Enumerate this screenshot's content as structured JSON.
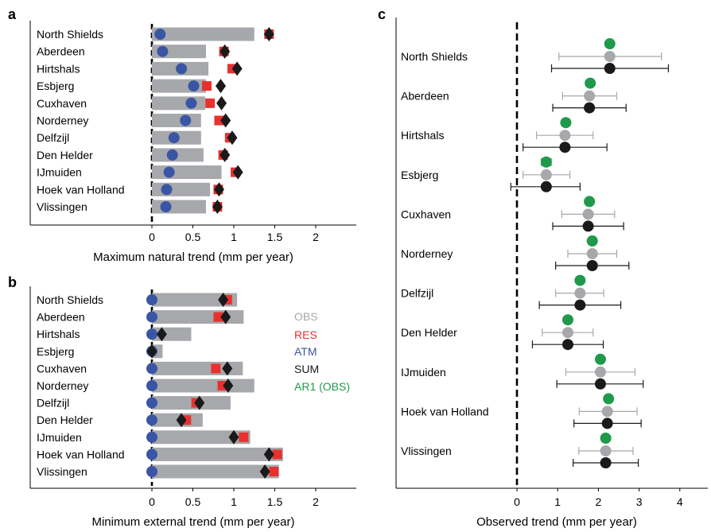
{
  "colors": {
    "obs": "#a6a8ab",
    "res": "#e8312f",
    "atm": "#3a55a4",
    "sum": "#1a1a1a",
    "ar1": "#1f9a4a"
  },
  "legend": {
    "obs": "OBS",
    "res": "RES",
    "atm": "ATM",
    "sum": "SUM",
    "ar1": "AR1 (OBS)"
  },
  "chart_data": [
    {
      "panel_label": "a",
      "type": "bar",
      "orientation": "horizontal",
      "xlabel": "Maximum natural trend (mm per year)",
      "xlim": [
        -1.5,
        2.45
      ],
      "xticks": [
        0,
        0.5,
        1,
        1.5,
        2
      ],
      "xtick_labels": [
        "0",
        "0.5",
        "1",
        "1.5",
        "2"
      ],
      "categories": [
        "North Shields",
        "Aberdeen",
        "Hirtshals",
        "Esbjerg",
        "Cuxhaven",
        "Norderney",
        "Delfzijl",
        "Den Helder",
        "IJmuiden",
        "Hoek van Holland",
        "Vlissingen"
      ],
      "series": [
        {
          "name": "OBS",
          "kind": "bar",
          "values": [
            1.25,
            0.66,
            0.69,
            0.66,
            0.65,
            0.6,
            0.6,
            0.63,
            0.85,
            0.71,
            0.66
          ]
        },
        {
          "name": "RES",
          "kind": "square",
          "values": [
            1.43,
            0.88,
            0.98,
            0.67,
            0.71,
            0.82,
            0.95,
            0.87,
            1.02,
            0.81,
            0.8
          ]
        },
        {
          "name": "ATM",
          "kind": "circle",
          "values": [
            0.1,
            0.13,
            0.36,
            0.51,
            0.48,
            0.41,
            0.27,
            0.25,
            0.21,
            0.18,
            0.17
          ]
        },
        {
          "name": "SUM",
          "kind": "diamond",
          "values": [
            1.43,
            0.89,
            1.04,
            0.84,
            0.85,
            0.9,
            0.98,
            0.89,
            1.05,
            0.82,
            0.8
          ]
        }
      ]
    },
    {
      "panel_label": "b",
      "type": "bar",
      "orientation": "horizontal",
      "xlabel": "Minimum external trend (mm per year)",
      "xlim": [
        -1.5,
        2.45
      ],
      "xticks": [
        0,
        0.5,
        1,
        1.5,
        2
      ],
      "xtick_labels": [
        "0",
        "0.5",
        "1",
        "1.5",
        "2"
      ],
      "categories": [
        "North Shields",
        "Aberdeen",
        "Hirtshals",
        "Esbjerg",
        "Cuxhaven",
        "Norderney",
        "Delfzijl",
        "Den Helder",
        "IJmuiden",
        "Hoek van Holland",
        "Vlissingen"
      ],
      "series": [
        {
          "name": "OBS",
          "kind": "bar",
          "values": [
            1.04,
            1.12,
            0.48,
            0.13,
            1.11,
            1.25,
            0.96,
            0.62,
            1.2,
            1.6,
            1.55
          ]
        },
        {
          "name": "RES",
          "kind": "square",
          "values": [
            0.92,
            0.81,
            0.0,
            0.0,
            0.78,
            0.86,
            0.54,
            0.42,
            1.12,
            1.53,
            1.49
          ]
        },
        {
          "name": "ATM",
          "kind": "circle",
          "values": [
            0.0,
            0.0,
            0.0,
            0.0,
            0.0,
            0.0,
            0.0,
            0.0,
            0.0,
            0.0,
            0.0
          ]
        },
        {
          "name": "SUM",
          "kind": "diamond",
          "values": [
            0.87,
            0.9,
            0.12,
            0.0,
            0.92,
            0.93,
            0.58,
            0.36,
            1.0,
            1.43,
            1.38
          ]
        }
      ]
    },
    {
      "panel_label": "c",
      "type": "scatter",
      "orientation": "horizontal",
      "xlabel": "Observed trend (mm per year)",
      "xlim": [
        -1.2,
        4.65
      ],
      "xticks": [
        0,
        1,
        2,
        3,
        4
      ],
      "xtick_labels": [
        "0",
        "1",
        "2",
        "3",
        "4"
      ],
      "categories": [
        "North Shields",
        "Aberdeen",
        "Hirtshals",
        "Esbjerg",
        "Cuxhaven",
        "Norderney",
        "Delfzijl",
        "Den Helder",
        "IJmuiden",
        "Hoek van Holland",
        "Vlissingen"
      ],
      "series": [
        {
          "name": "AR1 (OBS)",
          "kind": "circle",
          "values": [
            2.28,
            1.8,
            1.2,
            0.72,
            1.78,
            1.85,
            1.55,
            1.25,
            2.05,
            2.25,
            2.18
          ],
          "err_low": [
            2.28,
            1.78,
            1.12,
            0.6,
            1.7,
            1.78,
            1.48,
            1.25,
            2.05,
            2.25,
            2.18
          ],
          "err_high": [
            2.28,
            1.82,
            1.28,
            0.84,
            1.86,
            1.92,
            1.62,
            1.25,
            2.05,
            2.25,
            2.18
          ]
        },
        {
          "name": "OBS",
          "kind": "circle",
          "values": [
            2.28,
            1.78,
            1.18,
            0.72,
            1.75,
            1.85,
            1.55,
            1.25,
            2.05,
            2.22,
            2.18
          ],
          "err_low": [
            1.03,
            1.12,
            0.48,
            0.15,
            1.1,
            1.25,
            0.95,
            0.62,
            1.2,
            1.53,
            1.52
          ],
          "err_high": [
            3.55,
            2.45,
            1.87,
            1.3,
            2.4,
            2.45,
            2.13,
            1.87,
            2.9,
            2.95,
            2.85
          ]
        },
        {
          "name": "SUM",
          "kind": "circle",
          "values": [
            2.28,
            1.78,
            1.18,
            0.72,
            1.75,
            1.85,
            1.55,
            1.25,
            2.05,
            2.22,
            2.18
          ],
          "err_low": [
            0.85,
            0.88,
            0.15,
            -0.15,
            0.88,
            0.95,
            0.55,
            0.38,
            0.98,
            1.4,
            1.38
          ],
          "err_high": [
            3.72,
            2.68,
            2.21,
            1.55,
            2.62,
            2.75,
            2.55,
            2.12,
            3.1,
            3.05,
            2.98
          ]
        }
      ]
    }
  ]
}
